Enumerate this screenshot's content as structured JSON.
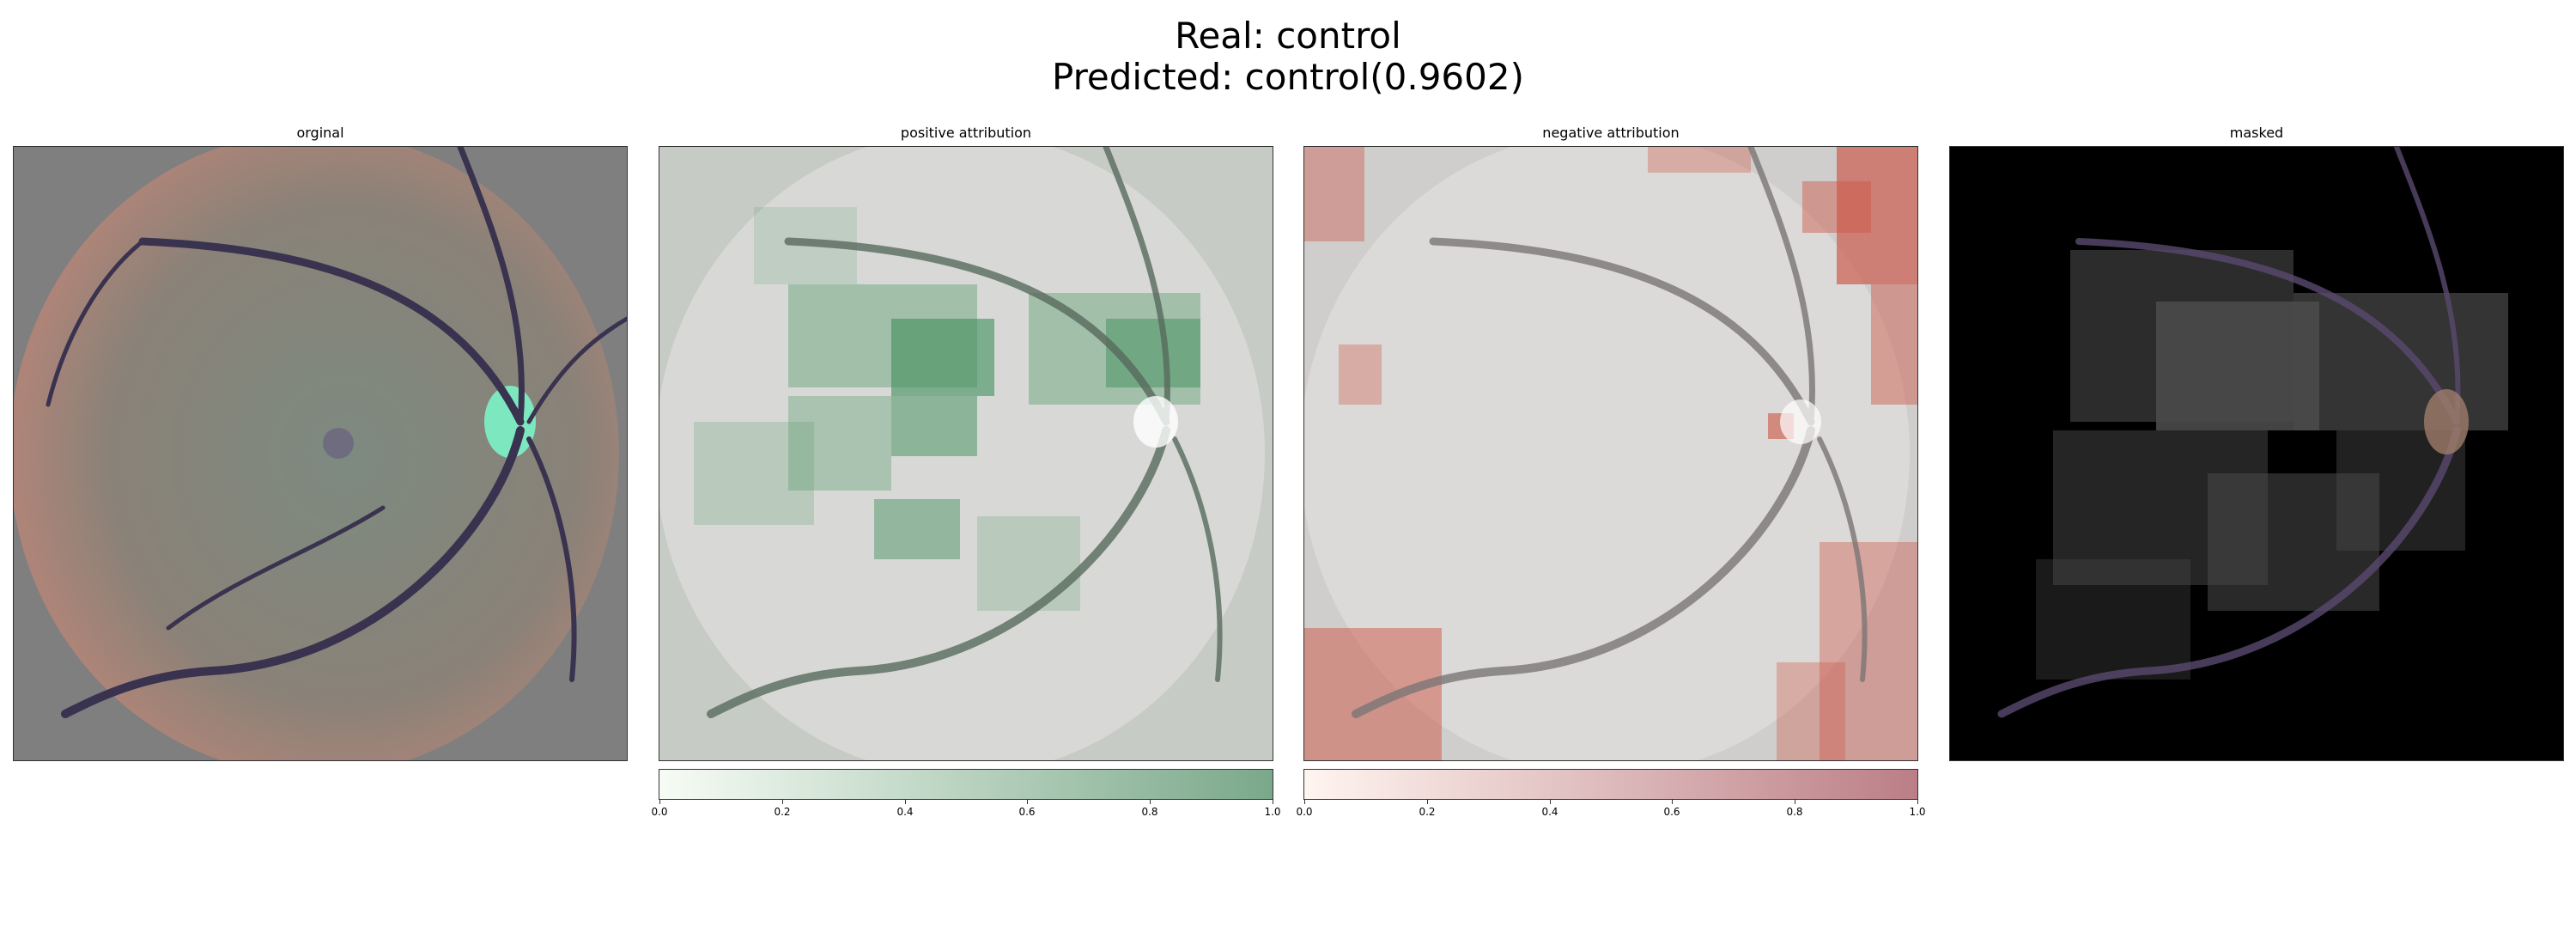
{
  "figure": {
    "title_line1": "Real: control",
    "title_line2": "Predicted: control(0.9602)"
  },
  "panels": [
    {
      "title": "orginal"
    },
    {
      "title": "positive attribution"
    },
    {
      "title": "negative attribution"
    },
    {
      "title": "masked"
    }
  ],
  "colorbars": [
    {
      "panel": "positive attribution",
      "colormap": "greens",
      "low_color": "#f7fcf5",
      "high_color": "#7aa88a",
      "range": [
        0.0,
        1.0
      ],
      "ticks": [
        "0.0",
        "0.2",
        "0.4",
        "0.6",
        "0.8",
        "1.0"
      ]
    },
    {
      "panel": "negative attribution",
      "colormap": "reds",
      "low_color": "#fff5f0",
      "high_color": "#bb7e86",
      "range": [
        0.0,
        1.0
      ],
      "ticks": [
        "0.0",
        "0.2",
        "0.4",
        "0.6",
        "0.8",
        "1.0"
      ]
    }
  ]
}
